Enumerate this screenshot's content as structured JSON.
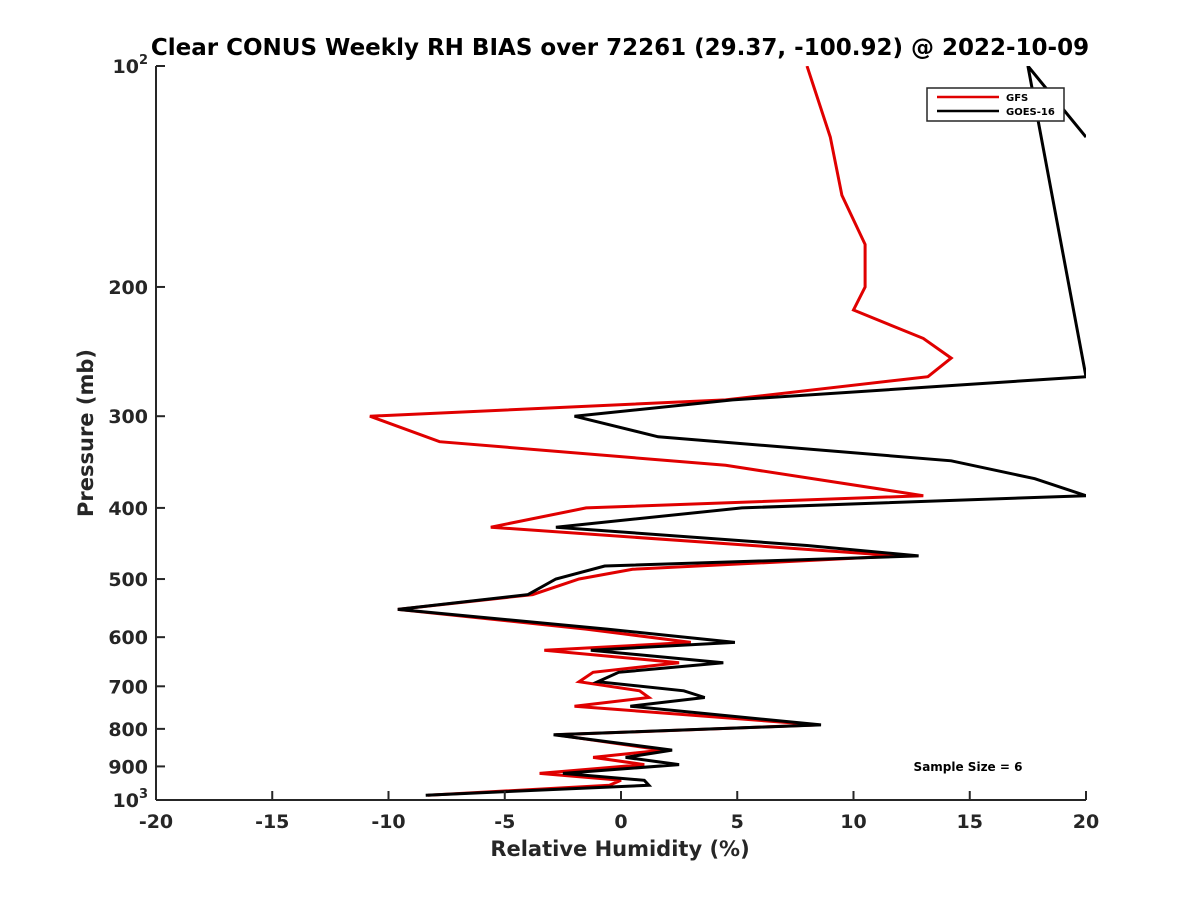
{
  "chart_data": {
    "type": "line",
    "title": "Clear CONUS Weekly RH BIAS over 72261 (29.37, -100.92) @ 2022-10-09",
    "xlabel": "Relative Humidity (%)",
    "ylabel": "Pressure (mb)",
    "xlim": [
      -20,
      20
    ],
    "ylim": [
      100,
      1000
    ],
    "y_scale": "log",
    "y_reversed": true,
    "grid": false,
    "legend_placement": "top-right",
    "x_ticks": [
      -20,
      -15,
      -10,
      -5,
      0,
      5,
      10,
      15,
      20
    ],
    "x_tick_labels": [
      "-20",
      "-15",
      "-10",
      "-5",
      "0",
      "5",
      "10",
      "15",
      "20"
    ],
    "y_ticks": [
      100,
      200,
      300,
      400,
      500,
      600,
      700,
      800,
      900,
      1000
    ],
    "y_tick_labels": [
      {
        "base": "10",
        "exp": "2"
      },
      {
        "base": "200",
        "exp": ""
      },
      {
        "base": "300",
        "exp": ""
      },
      {
        "base": "400",
        "exp": ""
      },
      {
        "base": "500",
        "exp": ""
      },
      {
        "base": "600",
        "exp": ""
      },
      {
        "base": "700",
        "exp": ""
      },
      {
        "base": "800",
        "exp": ""
      },
      {
        "base": "900",
        "exp": ""
      },
      {
        "base": "10",
        "exp": "3"
      }
    ],
    "annotation": "Sample Size = 6",
    "series": [
      {
        "name": "GFS",
        "color": "#e00000",
        "points": [
          [
            8.0,
            100
          ],
          [
            9.0,
            125
          ],
          [
            9.5,
            150
          ],
          [
            10.5,
            175
          ],
          [
            10.5,
            200
          ],
          [
            10.0,
            215
          ],
          [
            13.0,
            235
          ],
          [
            14.2,
            250
          ],
          [
            13.2,
            265
          ],
          [
            4.5,
            285
          ],
          [
            -10.8,
            300
          ],
          [
            -7.8,
            325
          ],
          [
            4.5,
            350
          ],
          [
            13.0,
            385
          ],
          [
            -1.5,
            400
          ],
          [
            -5.6,
            425
          ],
          [
            12.0,
            465
          ],
          [
            0.5,
            485
          ],
          [
            -1.8,
            500
          ],
          [
            -3.8,
            525
          ],
          [
            -9.6,
            550
          ],
          [
            -1.5,
            585
          ],
          [
            3.0,
            610
          ],
          [
            -3.3,
            625
          ],
          [
            2.5,
            650
          ],
          [
            -1.2,
            670
          ],
          [
            -1.8,
            690
          ],
          [
            0.8,
            710
          ],
          [
            1.2,
            725
          ],
          [
            -2.0,
            745
          ],
          [
            8.5,
            790
          ],
          [
            -2.8,
            815
          ],
          [
            1.8,
            855
          ],
          [
            -1.2,
            875
          ],
          [
            1.0,
            895
          ],
          [
            -3.5,
            920
          ],
          [
            0.0,
            940
          ],
          [
            -0.5,
            955
          ],
          [
            -8.3,
            985
          ]
        ]
      },
      {
        "name": "GOES-16",
        "color": "#000000",
        "points": [
          [
            20.0,
            125
          ],
          [
            17.5,
            100
          ],
          [
            20.0,
            265
          ],
          [
            4.8,
            285
          ],
          [
            -2.0,
            300
          ],
          [
            1.6,
            320
          ],
          [
            14.2,
            345
          ],
          [
            17.8,
            365
          ],
          [
            20.0,
            385
          ],
          [
            5.2,
            400
          ],
          [
            -2.8,
            425
          ],
          [
            8.0,
            450
          ],
          [
            12.8,
            465
          ],
          [
            -0.7,
            480
          ],
          [
            -2.8,
            500
          ],
          [
            -4.0,
            525
          ],
          [
            -9.6,
            550
          ],
          [
            -0.6,
            585
          ],
          [
            4.9,
            610
          ],
          [
            -1.3,
            625
          ],
          [
            4.4,
            650
          ],
          [
            -0.1,
            670
          ],
          [
            -1.0,
            690
          ],
          [
            2.7,
            710
          ],
          [
            3.6,
            725
          ],
          [
            0.4,
            745
          ],
          [
            8.6,
            790
          ],
          [
            -2.9,
            815
          ],
          [
            2.2,
            855
          ],
          [
            0.2,
            875
          ],
          [
            2.5,
            895
          ],
          [
            -2.5,
            920
          ],
          [
            1.0,
            940
          ],
          [
            1.2,
            955
          ],
          [
            -8.4,
            985
          ]
        ]
      }
    ]
  }
}
